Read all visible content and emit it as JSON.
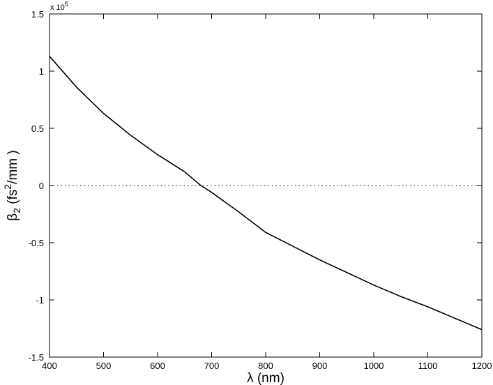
{
  "chart_data": {
    "type": "line",
    "xlabel": "λ (nm)",
    "ylabel_parts": [
      "β",
      "2",
      " (fs",
      "2",
      "/mm )"
    ],
    "y_multiplier": "x 10",
    "y_multiplier_exponent": "5",
    "x": [
      400,
      450,
      500,
      550,
      600,
      650,
      680,
      700,
      750,
      800,
      850,
      900,
      950,
      1000,
      1050,
      1100,
      1150,
      1200
    ],
    "series": [
      {
        "color": "#000000",
        "values": [
          1.13,
          0.86,
          0.63,
          0.44,
          0.27,
          0.12,
          0.0,
          -0.06,
          -0.23,
          -0.41,
          -0.53,
          -0.65,
          -0.76,
          -0.87,
          -0.97,
          -1.06,
          -1.16,
          -1.26
        ]
      }
    ],
    "hline": 0,
    "xlim": [
      400,
      1200
    ],
    "ylim": [
      -1.5,
      1.5
    ],
    "xticks": [
      400,
      500,
      600,
      700,
      800,
      900,
      1000,
      1100,
      1200
    ],
    "yticks": [
      -1.5,
      -1,
      -0.5,
      0,
      0.5,
      1,
      1.5
    ],
    "grid": false
  }
}
